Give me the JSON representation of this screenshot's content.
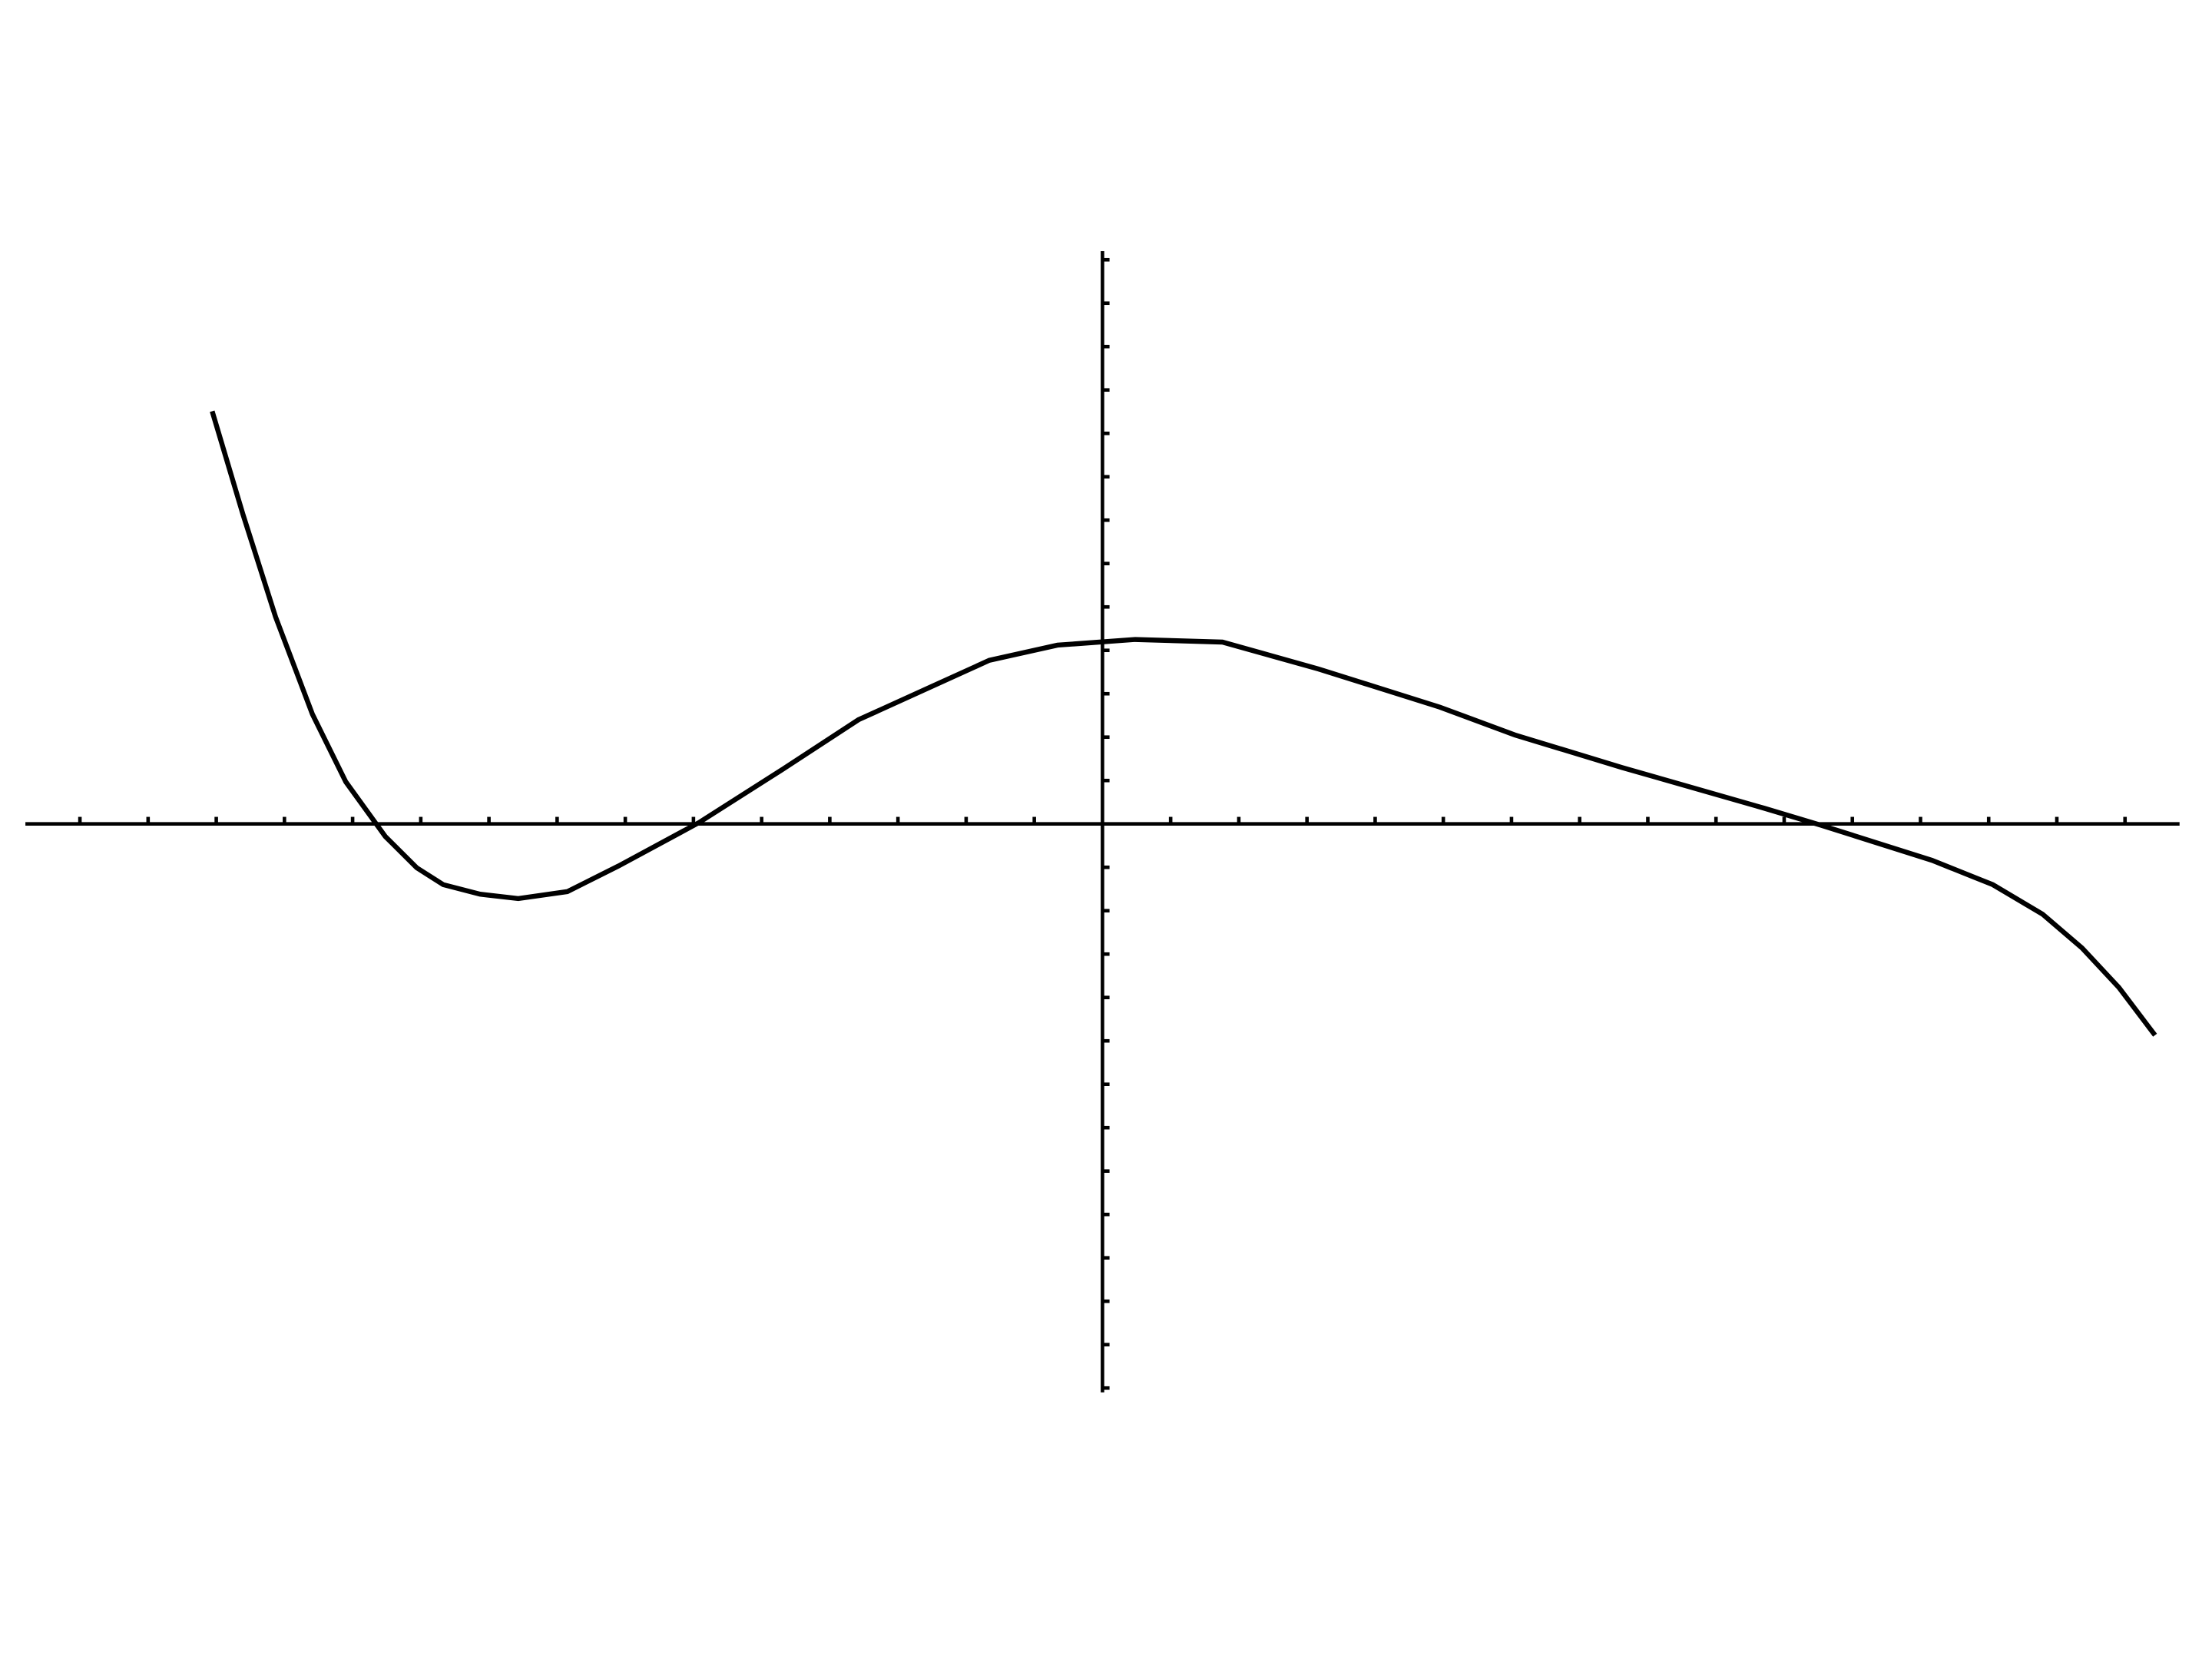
{
  "chart_data": {
    "type": "line",
    "color": "#000000",
    "x": [
      -13.06,
      -12.61,
      -12.13,
      -11.59,
      -11.1,
      -10.52,
      -10.06,
      -9.67,
      -9.13,
      -8.57,
      -7.85,
      -7.1,
      -5.92,
      -4.72,
      -3.58,
      -1.66,
      -0.66,
      0.48,
      1.76,
      3.17,
      4.95,
      6.05,
      7.62,
      9.71,
      10.54,
      12.17,
      13.06,
      13.79,
      14.37,
      14.91,
      15.44
    ],
    "values": [
      9.51,
      7.14,
      4.77,
      2.53,
      0.97,
      -0.29,
      -1.01,
      -1.4,
      -1.62,
      -1.72,
      -1.56,
      -0.97,
      0.03,
      1.23,
      2.4,
      3.77,
      4.12,
      4.25,
      4.19,
      3.57,
      2.69,
      2.05,
      1.3,
      0.36,
      -0.03,
      -0.84,
      -1.4,
      -2.08,
      -2.86,
      -3.77,
      -4.87
    ],
    "xlim": [
      -15.8,
      15.8
    ],
    "ylim": [
      -13.1,
      13.2
    ],
    "xticks": [
      -15,
      -14,
      -13,
      -12,
      -11,
      -10,
      -9,
      -8,
      -7,
      -6,
      -5,
      -4,
      -3,
      -2,
      -1,
      1,
      2,
      3,
      4,
      5,
      6,
      7,
      8,
      9,
      10,
      11,
      12,
      13,
      14,
      15
    ],
    "yticks": [
      -13,
      -12,
      -11,
      -10,
      -9,
      -8,
      -7,
      -6,
      -5,
      -4,
      -3,
      -2,
      -1,
      1,
      2,
      3,
      4,
      5,
      6,
      7,
      8,
      9,
      10,
      11,
      12,
      13
    ]
  }
}
